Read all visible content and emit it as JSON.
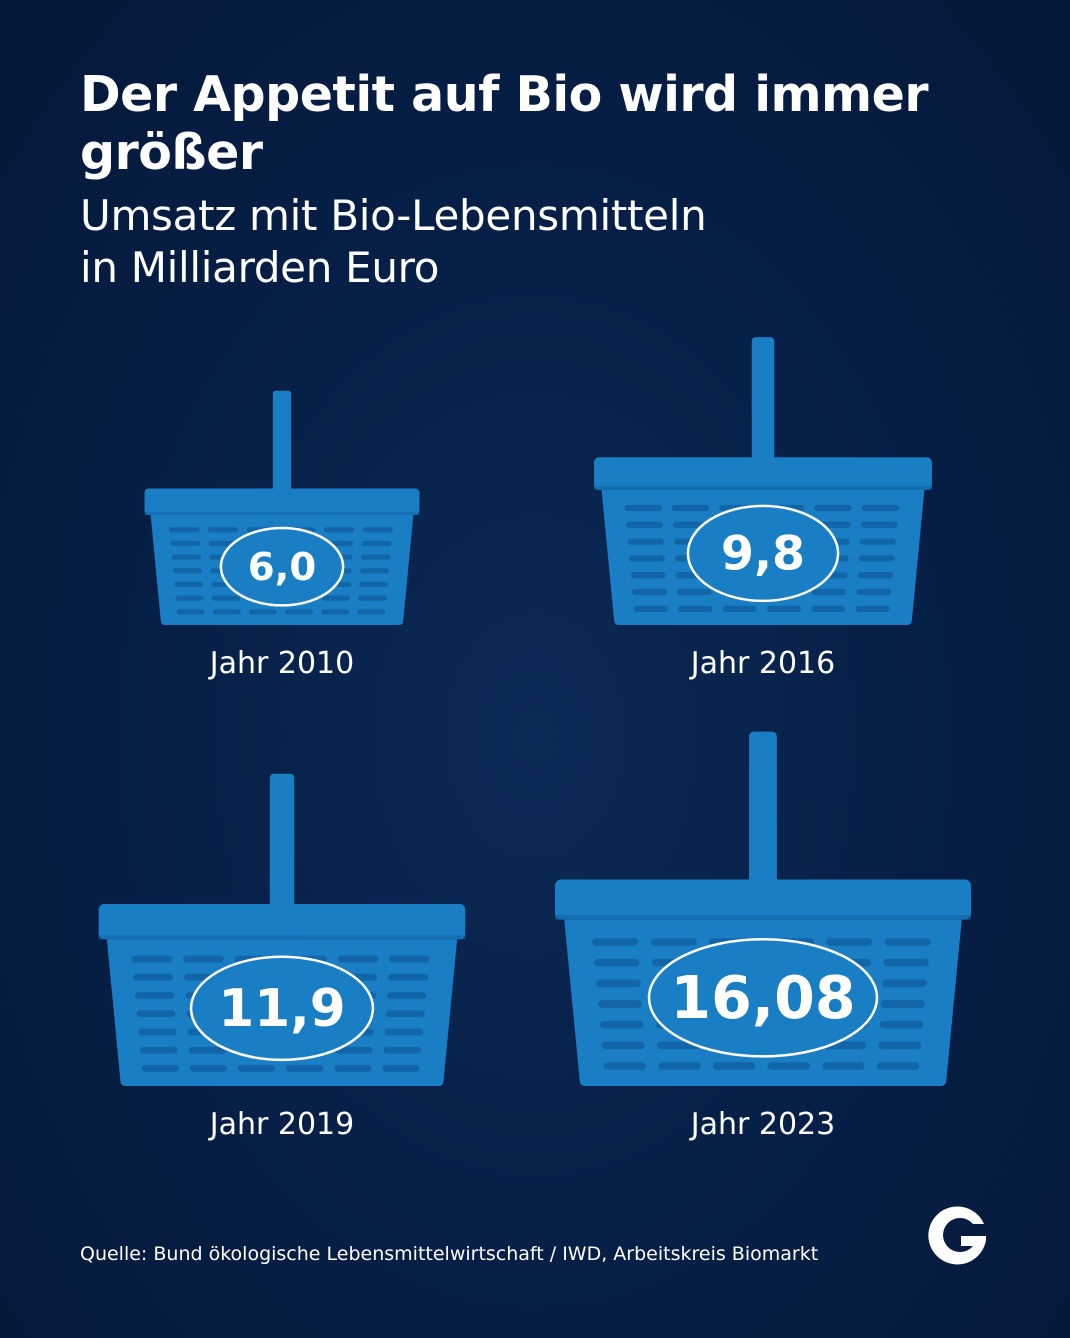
{
  "title": "Der Appetit auf Bio wird immer größer",
  "subtitle_line1": "Umsatz mit Bio-Lebensmitteln",
  "subtitle_line2": "in Milliarden Euro",
  "chart_data": {
    "type": "bar",
    "title": "Der Appetit auf Bio wird immer größer",
    "subtitle": "Umsatz mit Bio-Lebensmitteln in Milliarden Euro",
    "categories": [
      "Jahr 2010",
      "Jahr 2016",
      "Jahr 2019",
      "Jahr 2023"
    ],
    "values": [
      6.0,
      9.8,
      11.9,
      16.08
    ],
    "value_labels": [
      "6,0",
      "9,8",
      "11,9",
      "16,08"
    ],
    "mark": "basket",
    "grid": false
  },
  "source": "Quelle: Bund ökologische Lebensmittelwirtschaft / IWD, Arbeitskreis Biomarkt",
  "colors": {
    "background": "#06204a",
    "basket": "#1a7ec4",
    "basket_dark": "#1266a8",
    "text": "#ffffff"
  },
  "logo": {
    "icon": "publisher-g-logo"
  }
}
